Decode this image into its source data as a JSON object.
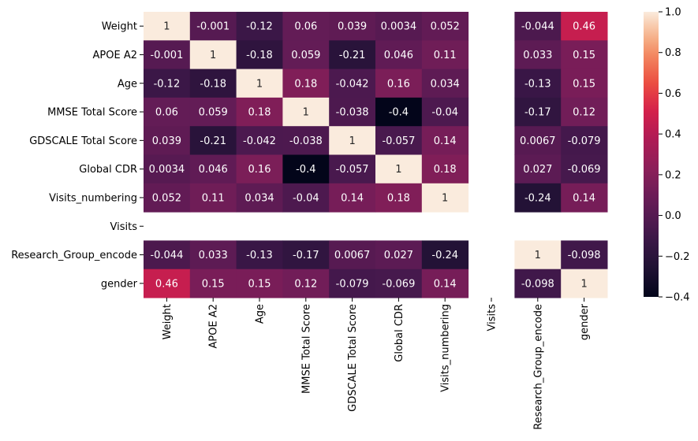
{
  "chart_data": {
    "type": "heatmap",
    "title": "",
    "xlabel": "",
    "ylabel": "",
    "rows": [
      "Weight",
      "APOE A2",
      "Age",
      "MMSE Total Score",
      "GDSCALE Total Score",
      "Global CDR",
      "Visits_numbering",
      "Visits",
      "Research_Group_encode",
      "gender"
    ],
    "columns": [
      "Weight",
      "APOE A2",
      "Age",
      "MMSE Total Score",
      "GDSCALE Total Score",
      "Global CDR",
      "Visits_numbering",
      "Visits",
      "Research_Group_encode",
      "gender"
    ],
    "values": [
      [
        "1",
        "-0.001",
        "-0.12",
        "0.06",
        "0.039",
        "0.0034",
        "0.052",
        null,
        "-0.044",
        "0.46"
      ],
      [
        "-0.001",
        "1",
        "-0.18",
        "0.059",
        "-0.21",
        "0.046",
        "0.11",
        null,
        "0.033",
        "0.15"
      ],
      [
        "-0.12",
        "-0.18",
        "1",
        "0.18",
        "-0.042",
        "0.16",
        "0.034",
        null,
        "-0.13",
        "0.15"
      ],
      [
        "0.06",
        "0.059",
        "0.18",
        "1",
        "-0.038",
        "-0.4",
        "-0.04",
        null,
        "-0.17",
        "0.12"
      ],
      [
        "0.039",
        "-0.21",
        "-0.042",
        "-0.038",
        "1",
        "-0.057",
        "0.14",
        null,
        "0.0067",
        "-0.079"
      ],
      [
        "0.0034",
        "0.046",
        "0.16",
        "-0.4",
        "-0.057",
        "1",
        "0.18",
        null,
        "0.027",
        "-0.069"
      ],
      [
        "0.052",
        "0.11",
        "0.034",
        "-0.04",
        "0.14",
        "0.18",
        "1",
        null,
        "-0.24",
        "0.14"
      ],
      [
        null,
        null,
        null,
        null,
        null,
        null,
        null,
        null,
        null,
        null
      ],
      [
        "-0.044",
        "0.033",
        "-0.13",
        "-0.17",
        "0.0067",
        "0.027",
        "-0.24",
        null,
        "1",
        "-0.098"
      ],
      [
        "0.46",
        "0.15",
        "0.15",
        "0.12",
        "-0.079",
        "-0.069",
        "0.14",
        null,
        "-0.098",
        "1"
      ]
    ],
    "colorbar": {
      "min": -0.4,
      "max": 1.0,
      "ticks": [
        "1.0",
        "0.8",
        "0.6",
        "0.4",
        "0.2",
        "0.0",
        "−0.2",
        "−0.4"
      ],
      "tick_values": [
        1.0,
        0.8,
        0.6,
        0.4,
        0.2,
        0.0,
        -0.2,
        -0.4
      ],
      "colormap": "rocket"
    }
  }
}
